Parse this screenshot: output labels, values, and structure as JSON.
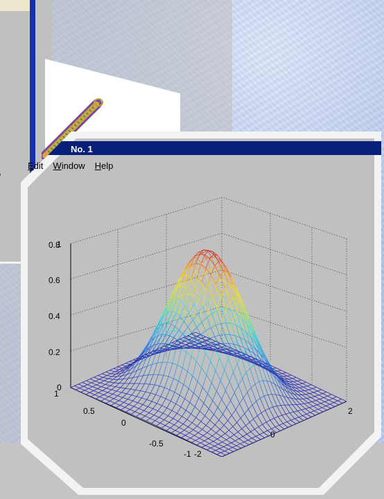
{
  "window": {
    "title": "No. 1"
  },
  "menu": {
    "items": [
      {
        "label": "Edit",
        "accel": "E",
        "rest": "dit"
      },
      {
        "label": "Window",
        "accel": "W",
        "rest": "indow"
      },
      {
        "label": "Help",
        "accel": "H",
        "rest": "elp"
      }
    ]
  },
  "back_window": {
    "tick_fragment": "5"
  },
  "plot": {
    "z_ticks": [
      "0",
      "0.2",
      "0.4",
      "0.6",
      "0.8",
      "1"
    ],
    "y_ticks": [
      "1",
      "0.5",
      "0",
      "-0.5",
      "-1"
    ],
    "x_ticks": [
      "-2",
      "0",
      "2"
    ]
  },
  "colors": {
    "titlebar": "#06207a",
    "frame_gray": "#c0c0c0",
    "back_blue": "#1431a8"
  }
}
